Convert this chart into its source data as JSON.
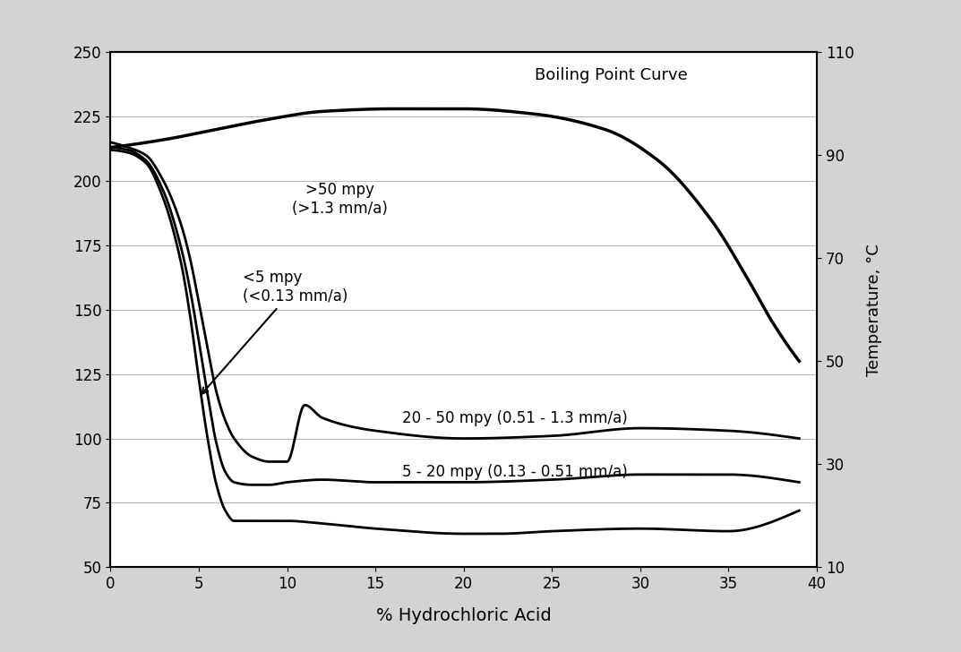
{
  "background_color": "#d3d3d3",
  "plot_bg_color": "#ffffff",
  "xlabel": "% Hydrochloric Acid",
  "ylabel_right": "Temperature, °C",
  "xlim": [
    0,
    40
  ],
  "ylim_left": [
    50,
    250
  ],
  "ylim_right": [
    10,
    110
  ],
  "xticks": [
    0,
    5,
    10,
    15,
    20,
    25,
    30,
    35,
    40
  ],
  "yticks_left": [
    50,
    75,
    100,
    125,
    150,
    175,
    200,
    225,
    250
  ],
  "yticks_right": [
    10,
    30,
    50,
    70,
    90,
    110
  ],
  "boiling_point_label": "Boiling Point Curve",
  "label_gt50": ">50 mpy\n(>1.3 mm/a)",
  "label_lt5": "<5 mpy\n(<0.13 mm/a)",
  "label_20_50": "20 - 50 mpy (0.51 - 1.3 mm/a)",
  "label_5_20": "5 - 20 mpy (0.13 - 0.51 mm/a)",
  "boiling_curve_x": [
    0,
    3,
    6,
    9,
    12,
    16,
    20,
    24,
    28,
    31,
    34,
    36,
    37.5,
    39
  ],
  "boiling_curve_y": [
    213,
    216,
    220,
    224,
    227,
    228,
    228,
    226,
    220,
    208,
    185,
    163,
    145,
    130
  ],
  "curve_upper_x": [
    0,
    1,
    2,
    3,
    4,
    4.5,
    5,
    5.5,
    6,
    6.5,
    7,
    8,
    9,
    10,
    11,
    12,
    15,
    20,
    25,
    30,
    35,
    39
  ],
  "curve_upper_y": [
    215,
    213,
    210,
    200,
    183,
    170,
    153,
    135,
    118,
    107,
    100,
    93,
    91,
    91,
    113,
    108,
    103,
    100,
    101,
    104,
    103,
    100
  ],
  "curve_mid_x": [
    0,
    1,
    2,
    3,
    4,
    4.5,
    5,
    5.5,
    6,
    6.5,
    7,
    8,
    9,
    10,
    12,
    15,
    20,
    25,
    30,
    35,
    39
  ],
  "curve_mid_y": [
    213,
    212,
    208,
    196,
    174,
    158,
    138,
    117,
    98,
    87,
    83,
    82,
    82,
    83,
    84,
    83,
    83,
    84,
    86,
    86,
    83
  ],
  "curve_lower_x": [
    0,
    1,
    2,
    3,
    4,
    4.5,
    5,
    5.5,
    6,
    6.5,
    7,
    7.5,
    8,
    10,
    12,
    15,
    20,
    22,
    25,
    30,
    35,
    39
  ],
  "curve_lower_y": [
    212,
    211,
    207,
    193,
    168,
    148,
    123,
    100,
    82,
    72,
    68,
    68,
    68,
    68,
    67,
    65,
    63,
    63,
    64,
    65,
    64,
    72
  ],
  "line_color": "#000000",
  "line_width": 2.0,
  "font_size_labels": 13,
  "font_size_ticks": 12,
  "font_size_xlabel": 14,
  "font_size_annot": 12
}
